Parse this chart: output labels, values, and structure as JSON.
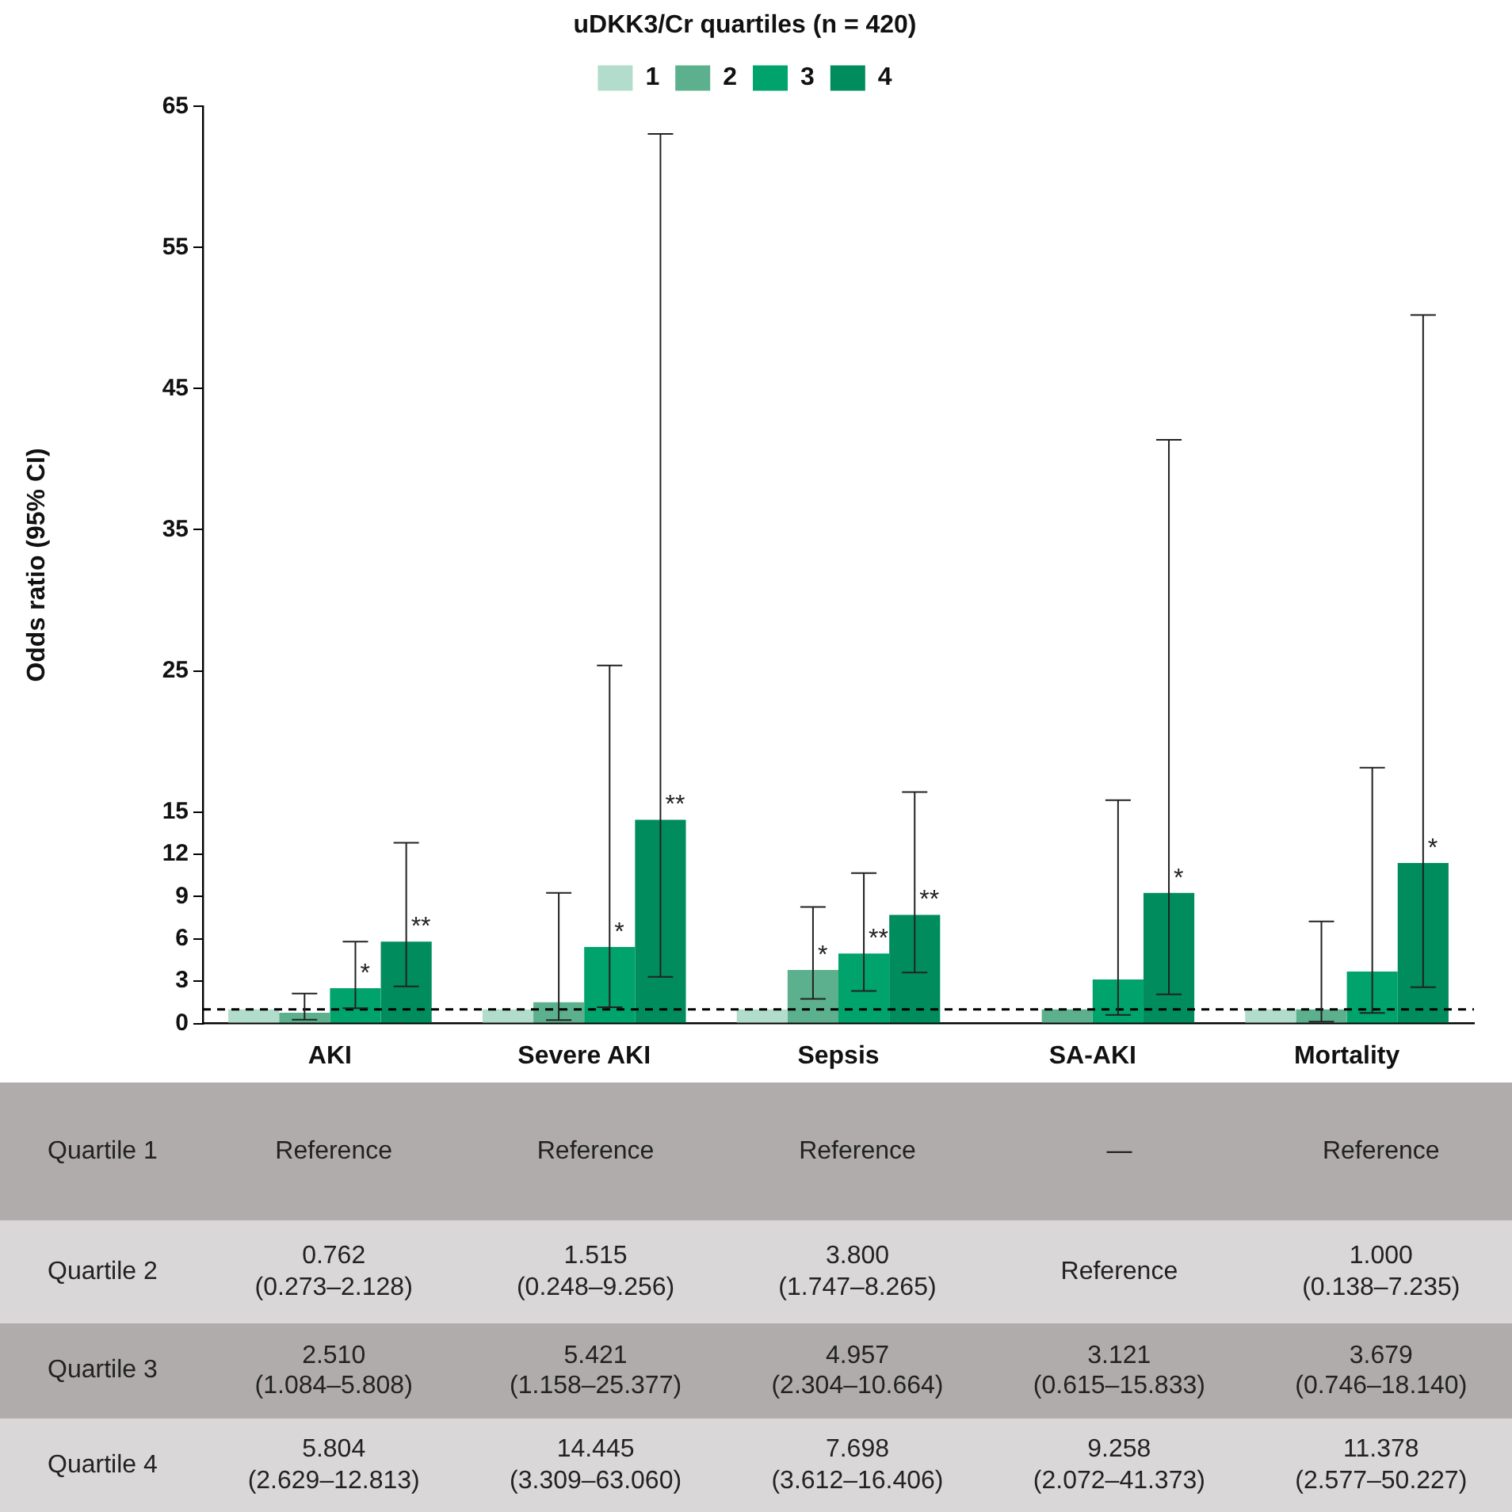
{
  "chart_data": {
    "type": "bar",
    "legend_title": "uDKK3/Cr quartiles (n = 420)",
    "legend": "top",
    "ylabel": "Odds ratio (95% CI)",
    "categories": [
      "AKI",
      "Severe AKI",
      "Sepsis",
      "SA-AKI",
      "Mortality"
    ],
    "ylim": [
      0,
      65
    ],
    "yticks": [
      0,
      3,
      6,
      9,
      12,
      15,
      25,
      35,
      45,
      55,
      65
    ],
    "grid": false,
    "series": [
      {
        "name": "1",
        "color": "#b2dccb",
        "values": [
          1,
          1,
          1,
          null,
          1
        ],
        "errors": [
          null,
          null,
          null,
          null,
          null
        ]
      },
      {
        "name": "2",
        "color": "#5cb08d",
        "values": [
          0.762,
          1.515,
          3.8,
          1,
          1.0
        ],
        "errors": [
          [
            0.273,
            2.128
          ],
          [
            0.248,
            9.256
          ],
          [
            1.747,
            8.265
          ],
          null,
          [
            0.138,
            7.235
          ]
        ],
        "value_labels": [
          null,
          null,
          "*",
          null,
          null
        ]
      },
      {
        "name": "3",
        "color": "#00a36c",
        "values": [
          2.51,
          5.421,
          4.957,
          3.121,
          3.679
        ],
        "errors": [
          [
            1.084,
            5.808
          ],
          [
            1.158,
            25.377
          ],
          [
            2.304,
            10.664
          ],
          [
            0.615,
            15.833
          ],
          [
            0.746,
            18.14
          ]
        ],
        "value_labels": [
          "*",
          "*",
          "**",
          null,
          null
        ]
      },
      {
        "name": "4",
        "color": "#008c5c",
        "values": [
          5.804,
          14.445,
          7.698,
          9.258,
          11.378
        ],
        "errors": [
          [
            2.629,
            12.813
          ],
          [
            3.309,
            63.06
          ],
          [
            3.612,
            16.406
          ],
          [
            2.072,
            41.373
          ],
          [
            2.577,
            50.227
          ]
        ],
        "value_labels": [
          "**",
          "**",
          "**",
          "*",
          "*"
        ]
      }
    ],
    "ref_lines": [
      {
        "axis": "y",
        "value": 1,
        "color": "#000000",
        "line_style": "dashed"
      }
    ],
    "annotations": [
      "Quartile 1",
      "Reference",
      "Reference",
      "Reference",
      "—",
      "Reference",
      "Quartile 2",
      "0.762\n(0.273–2.128)",
      "1.515\n(0.248–9.256)",
      "3.800\n(1.747–8.265)",
      "Reference",
      "1.000\n(0.138–7.235)",
      "Quartile 3",
      "2.510\n(1.084–5.808)",
      "5.421\n(1.158–25.377)",
      "4.957\n(2.304–10.664)",
      "3.121\n(0.615–15.833)",
      "3.679\n(0.746–18.140)",
      "Quartile 4",
      "5.804\n(2.629–12.813)",
      "14.445\n(3.309–63.060)",
      "7.698\n(3.612–16.406)",
      "9.258\n(2.072–41.373)",
      "11.378\n(2.577–50.227)"
    ]
  }
}
